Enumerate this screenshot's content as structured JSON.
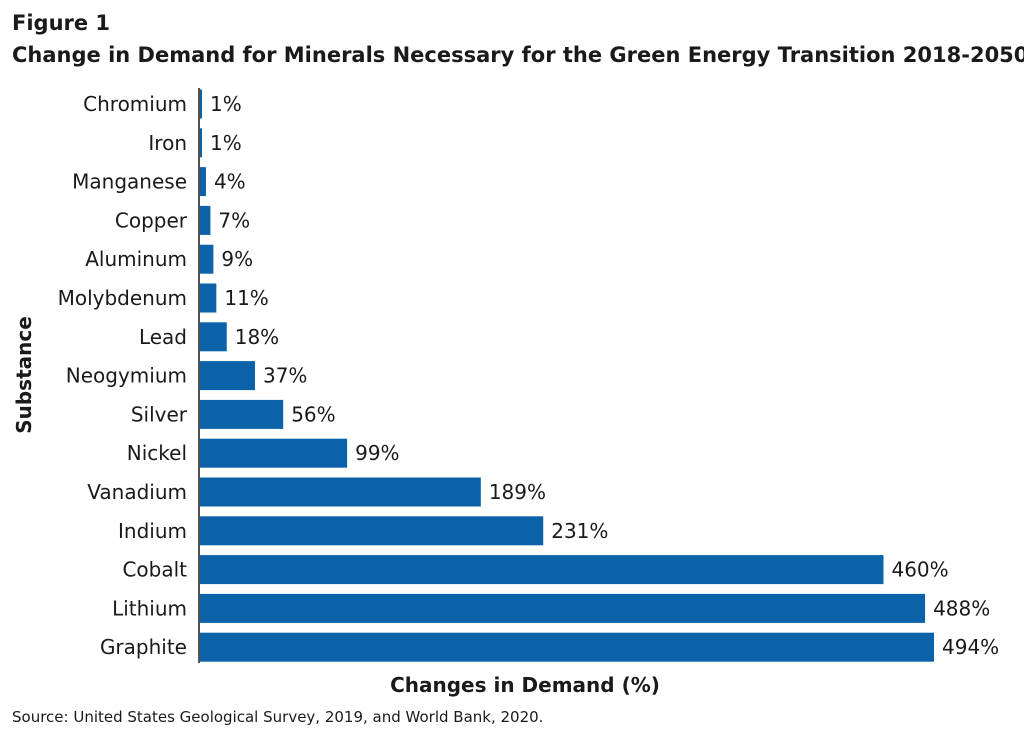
{
  "figure_label": "Figure 1",
  "title": "Change in Demand for Minerals Necessary for the Green Energy Transition 2018-2050",
  "source": "Source: United States Geological Survey, 2019, and World Bank, 2020.",
  "colors": {
    "bar": "#0b62a8",
    "text": "#1a1a1a",
    "axis": "#1a1a1a"
  },
  "chart_data": {
    "type": "bar",
    "orientation": "horizontal",
    "title": "Change in Demand for Minerals Necessary for the Green Energy Transition 2018-2050",
    "xlabel": "Changes in Demand (%)",
    "ylabel": "Substance",
    "categories": [
      "Chromium",
      "Iron",
      "Manganese",
      "Copper",
      "Aluminum",
      "Molybdenum",
      "Lead",
      "Neogymium",
      "Silver",
      "Nickel",
      "Vanadium",
      "Indium",
      "Cobalt",
      "Lithium",
      "Graphite"
    ],
    "values": [
      1,
      1,
      4,
      7,
      9,
      11,
      18,
      37,
      56,
      99,
      189,
      231,
      460,
      488,
      494
    ],
    "data_labels": [
      "1%",
      "1%",
      "4%",
      "7%",
      "9%",
      "11%",
      "18%",
      "37%",
      "56%",
      "99%",
      "189%",
      "231%",
      "460%",
      "488%",
      "494%"
    ],
    "xlim": [
      0,
      494
    ],
    "grid": false,
    "legend": "none"
  }
}
